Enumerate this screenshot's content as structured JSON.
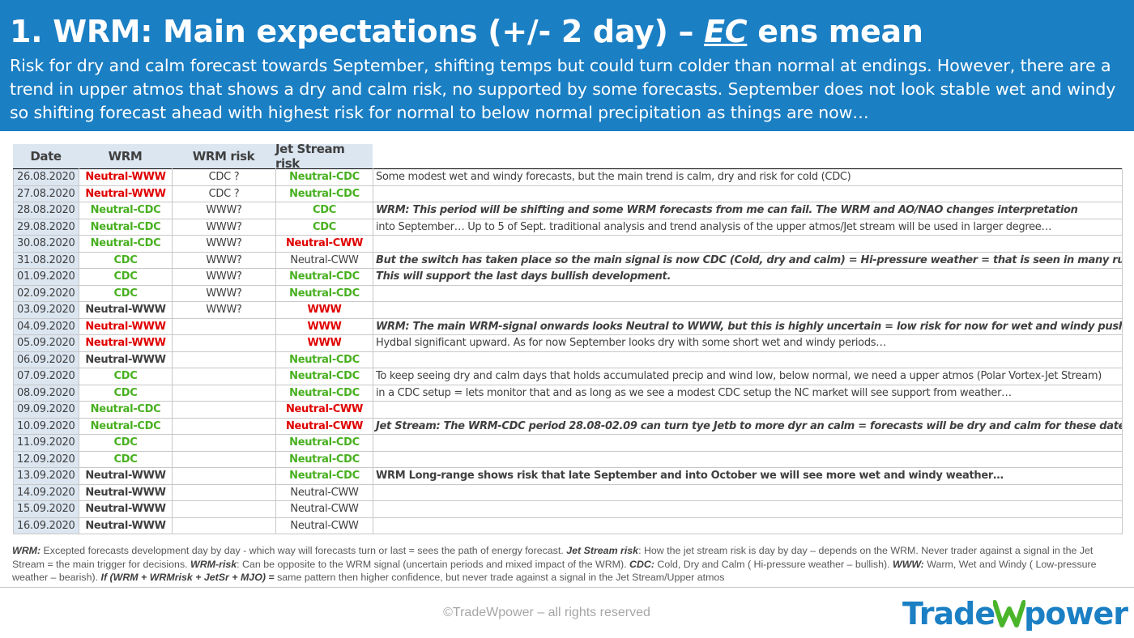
{
  "header": {
    "title_part1": "1. WRM: Main expectations (+/- 2 day) – ",
    "title_ec": "EC",
    "title_part2": " ens mean",
    "subtitle": "Risk for dry and calm forecast towards September, shifting temps but could turn colder than normal at endings. However, there are a trend in upper atmos that shows a dry and calm risk, no supported by some forecasts. September does not look stable wet and windy so shifting forecast ahead with highest risk for normal to below normal precipitation as things are now…"
  },
  "table": {
    "headers": {
      "date": "Date",
      "wrm": "WRM",
      "wrm_risk": "WRM risk",
      "jet": "Jet Stream risk"
    },
    "rows": [
      {
        "date": "26.08.2020",
        "wrm": "Neutral-WWW",
        "wrm_color": "red",
        "risk": "CDC ?",
        "jet": "Neutral-CDC",
        "jet_color": "green",
        "note": "Some modest wet and windy forecasts, but the main trend is calm, dry and risk for cold (CDC)",
        "note_style": "plain",
        "group_start": true
      },
      {
        "date": "27.08.2020",
        "wrm": "Neutral-WWW",
        "wrm_color": "red",
        "risk": "CDC ?",
        "jet": "Neutral-CDC",
        "jet_color": "green",
        "note": "",
        "note_style": "plain",
        "group_start": false
      },
      {
        "date": "28.08.2020",
        "wrm": "Neutral-CDC",
        "wrm_color": "green",
        "risk": "WWW?",
        "jet": "CDC",
        "jet_color": "green",
        "note": "WRM: This period will be shifting and some WRM forecasts from me can fail. The WRM and AO/NAO changes interpretation",
        "note_style": "bi",
        "group_start": true
      },
      {
        "date": "29.08.2020",
        "wrm": "Neutral-CDC",
        "wrm_color": "green",
        "risk": "WWW?",
        "jet": "CDC",
        "jet_color": "green",
        "note": "into September… Up to 5 of Sept.  traditional analysis and trend analysis of the upper atmos/Jet stream will be used in larger degree…",
        "note_style": "plain",
        "group_start": false
      },
      {
        "date": "30.08.2020",
        "wrm": "Neutral-CDC",
        "wrm_color": "green",
        "risk": "WWW?",
        "jet": "Neutral-CWW",
        "jet_color": "red",
        "note": "",
        "note_style": "plain",
        "group_start": false
      },
      {
        "date": "31.08.2020",
        "wrm": "CDC",
        "wrm_color": "green",
        "risk": "WWW?",
        "jet": "Neutral-CWW",
        "jet_color": "gray",
        "note": "But the switch has taken place so the main signal is now CDC (Cold, dry and calm) = Hi-pressure weather = that is seen in many runs…",
        "note_style": "bi",
        "group_start": false
      },
      {
        "date": "01.09.2020",
        "wrm": "CDC",
        "wrm_color": "green",
        "risk": "WWW?",
        "jet": "Neutral-CDC",
        "jet_color": "green",
        "note": "This will support the last days bullish development.",
        "note_style": "bi",
        "group_start": false
      },
      {
        "date": "02.09.2020",
        "wrm": "CDC",
        "wrm_color": "green",
        "risk": "WWW?",
        "jet": "Neutral-CDC",
        "jet_color": "green",
        "note": "",
        "note_style": "plain",
        "group_start": false
      },
      {
        "date": "03.09.2020",
        "wrm": "Neutral-WWW",
        "wrm_color": "gray",
        "risk": "WWW?",
        "jet": "WWW",
        "jet_color": "red",
        "note": "",
        "note_style": "plain",
        "group_start": true
      },
      {
        "date": "04.09.2020",
        "wrm": "Neutral-WWW",
        "wrm_color": "red",
        "risk": "",
        "jet": "WWW",
        "jet_color": "red",
        "note": "WRM: The main WRM-signal onwards looks Neutral to WWW, but this is highly uncertain = low risk for now for wet and windy pushing",
        "note_style": "bi",
        "group_start": false
      },
      {
        "date": "05.09.2020",
        "wrm": "Neutral-WWW",
        "wrm_color": "red",
        "risk": "",
        "jet": "WWW",
        "jet_color": "red",
        "note": "Hydbal significant upward. As for now September looks dry with some short wet and windy periods…",
        "note_style": "plain",
        "group_start": false
      },
      {
        "date": "06.09.2020",
        "wrm": "Neutral-WWW",
        "wrm_color": "gray",
        "risk": "",
        "jet": "Neutral-CDC",
        "jet_color": "green",
        "note": "",
        "note_style": "plain",
        "group_start": true
      },
      {
        "date": "07.09.2020",
        "wrm": "CDC",
        "wrm_color": "green",
        "risk": "",
        "jet": "Neutral-CDC",
        "jet_color": "green",
        "note": "To keep seeing dry and calm days that holds accumulated precip and wind low, below normal, we need a upper atmos (Polar Vortex-Jet Stream)",
        "note_style": "plain",
        "group_start": false
      },
      {
        "date": "08.09.2020",
        "wrm": "CDC",
        "wrm_color": "green",
        "risk": "",
        "jet": "Neutral-CDC",
        "jet_color": "green",
        "note": "in a CDC setup = lets monitor that and as long as we see a modest CDC setup the NC market will see support from weather…",
        "note_style": "plain",
        "group_start": false
      },
      {
        "date": "09.09.2020",
        "wrm": "Neutral-CDC",
        "wrm_color": "green",
        "risk": "",
        "jet": "Neutral-CWW",
        "jet_color": "red",
        "note": "",
        "note_style": "plain",
        "group_start": false
      },
      {
        "date": "10.09.2020",
        "wrm": "Neutral-CDC",
        "wrm_color": "green",
        "risk": "",
        "jet": "Neutral-CWW",
        "jet_color": "red",
        "note": "Jet Stream: The WRM-CDC period 28.08-02.09 can turn tye Jetb to more dyr an calm = forecasts will be dry and calm for these dates…",
        "note_style": "bi",
        "group_start": false
      },
      {
        "date": "11.09.2020",
        "wrm": "CDC",
        "wrm_color": "green",
        "risk": "",
        "jet": "Neutral-CDC",
        "jet_color": "green",
        "note": "",
        "note_style": "plain",
        "group_start": false
      },
      {
        "date": "12.09.2020",
        "wrm": "CDC",
        "wrm_color": "green",
        "risk": "",
        "jet": "Neutral-CDC",
        "jet_color": "green",
        "note": "",
        "note_style": "plain",
        "group_start": false
      },
      {
        "date": "13.09.2020",
        "wrm": "Neutral-WWW",
        "wrm_color": "gray",
        "risk": "",
        "jet": "Neutral-CDC",
        "jet_color": "green",
        "note": "WRM Long-range shows risk that late September and into October we will see more wet and windy weather…",
        "note_style": "b",
        "group_start": true
      },
      {
        "date": "14.09.2020",
        "wrm": "Neutral-WWW",
        "wrm_color": "gray",
        "risk": "",
        "jet": "Neutral-CWW",
        "jet_color": "gray",
        "note": "",
        "note_style": "plain",
        "group_start": false
      },
      {
        "date": "15.09.2020",
        "wrm": "Neutral-WWW",
        "wrm_color": "gray",
        "risk": "",
        "jet": "Neutral-CWW",
        "jet_color": "gray",
        "note": "",
        "note_style": "plain",
        "group_start": false
      },
      {
        "date": "16.09.2020",
        "wrm": "Neutral-WWW",
        "wrm_color": "gray",
        "risk": "",
        "jet": "Neutral-CWW",
        "jet_color": "gray",
        "note": "",
        "note_style": "plain",
        "group_start": false
      }
    ]
  },
  "footnote": {
    "k1": "WRM:",
    "t1": " Excepted forecasts development day by day - which way will forecasts turn or last = sees the path of energy forecast.  ",
    "k2": "Jet Stream risk",
    "t2": ": How the jet stream risk is day by day – depends on the WRM. Never trader against a signal in the Jet Stream = the main trigger for decisions. ",
    "k3": "WRM-risk",
    "t3": ": Can be opposite to the WRM signal (uncertain periods and mixed impact of the WRM). ",
    "k4": "CDC:",
    "t4": " Cold, Dry and Calm ( Hi-pressure weather – bullish). ",
    "k5": "WWW:",
    "t5": " Warm, Wet and Windy ( Low-pressure weather – bearish). ",
    "k6": "If (WRM + WRMrisk + JetSr + MJO) =",
    "t6": " same pattern then higher confidence, but never trade against a signal in the Jet Stream/Upper atmos"
  },
  "footer": {
    "copyright": "©TradeWpower – all rights reserved",
    "logo_left": "Trade",
    "logo_right": "power",
    "logo_icon": "w-wave-icon"
  },
  "colors": {
    "header_bg": "#1b7fc4",
    "red": "#e00000",
    "green": "#48b020",
    "date_bg": "#dce6f1"
  }
}
